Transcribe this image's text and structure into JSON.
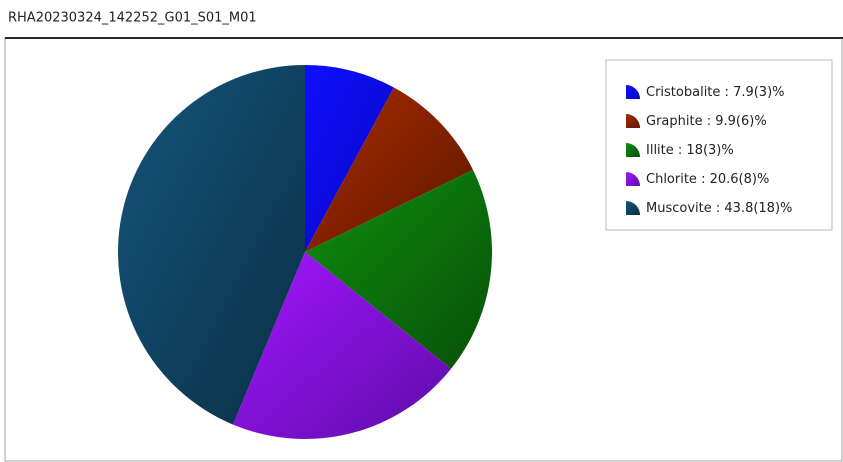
{
  "chart_data": {
    "type": "pie",
    "title": "RHA20230324_142252_G01_S01_M01",
    "categories": [
      "Cristobalite",
      "Graphite",
      "Illite",
      "Chlorite",
      "Muscovite"
    ],
    "label_separator": " : ",
    "values": [
      7.9,
      9.9,
      18,
      20.6,
      43.8
    ],
    "value_labels": [
      "7.9(3)%",
      "9.9(6)%",
      "18(3)%",
      "20.6(8)%",
      "43.8(18)%"
    ],
    "colors": [
      "#0a0aff",
      "#7d2000",
      "#0a6a0a",
      "#7a10e0",
      "#0f3f5c"
    ],
    "legend": "top-right"
  }
}
